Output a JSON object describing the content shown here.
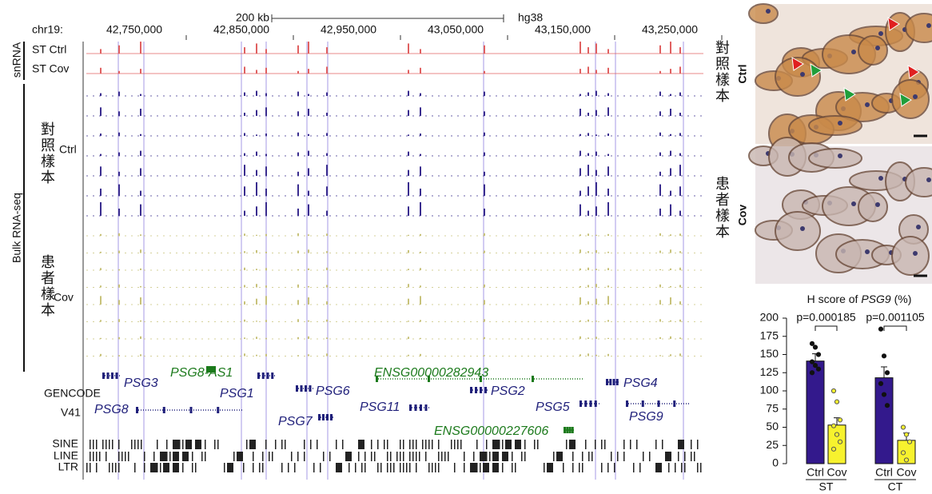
{
  "browser": {
    "chrom": "chr19:",
    "scale": "200 kb",
    "assembly": "hg38",
    "positions": [
      "42,750,000",
      "42,850,000",
      "42,950,000",
      "43,050,000",
      "43,150,000",
      "43,250,000"
    ],
    "labels": {
      "snrna": "snRNA",
      "st_ctrl": "ST Ctrl",
      "st_cov": "ST Cov",
      "bulk": "Bulk RNA-seq",
      "ctrl_cn": "對照樣本",
      "ctrl": "Ctrl",
      "cov_cn": "患者樣本",
      "cov": "Cov",
      "gencode": "GENCODE",
      "v41": "V41",
      "sine": "SINE",
      "line": "LINE",
      "ltr": "LTR",
      "right_ctrl_cn": "對照樣本",
      "right_cov_cn": "患者樣本"
    },
    "genes": [
      "PSG3",
      "PSG8-AS1",
      "PSG1",
      "PSG8",
      "PSG6",
      "PSG7",
      "PSG11",
      "ENSG00000282943",
      "PSG2",
      "PSG5",
      "ENSG00000227606",
      "PSG4",
      "PSG9"
    ]
  },
  "images": {
    "ctrl": "Ctrl",
    "cov": "Cov"
  },
  "chart_data": {
    "type": "bar",
    "title": [
      "H score of ",
      "PSG9",
      " (%)"
    ],
    "categories": [
      "Ctrl",
      "Cov",
      "Ctrl",
      "Cov"
    ],
    "groups": [
      "ST",
      "CT"
    ],
    "values": [
      141,
      53,
      118,
      32
    ],
    "errors": [
      10,
      10,
      15,
      10
    ],
    "colors": [
      "#33198c",
      "#f7f22e",
      "#33198c",
      "#f7f22e"
    ],
    "points": [
      [
        165,
        160,
        150,
        140,
        135,
        130,
        125
      ],
      [
        100,
        85,
        60,
        52,
        40,
        30,
        20
      ],
      [
        185,
        148,
        125,
        110,
        95,
        80
      ],
      [
        50,
        40,
        30,
        15,
        5
      ]
    ],
    "annotations": [
      "p=0.000185",
      "p=0.001105"
    ],
    "ylim": [
      0,
      200
    ],
    "yticks": [
      0,
      25,
      50,
      75,
      100,
      125,
      150,
      175,
      200
    ]
  }
}
